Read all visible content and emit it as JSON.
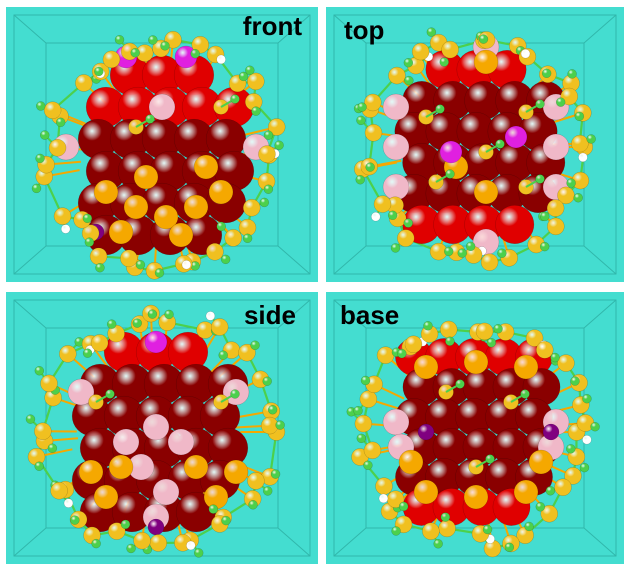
{
  "colors": {
    "background": "#44ddd0",
    "frame": "#2aa89c",
    "au": "#f5a800",
    "s": "#f0c020",
    "c": "#4cd04c",
    "h": "#ffffff",
    "o_red": "#e00000",
    "o_dark": "#8a0000",
    "pink": "#f0b8c8",
    "magenta": "#e020e0",
    "purple": "#800080"
  },
  "panels": [
    {
      "id": "front",
      "label": "front"
    },
    {
      "id": "top",
      "label": "top"
    },
    {
      "id": "side",
      "label": "side"
    },
    {
      "id": "base",
      "label": "base"
    }
  ]
}
